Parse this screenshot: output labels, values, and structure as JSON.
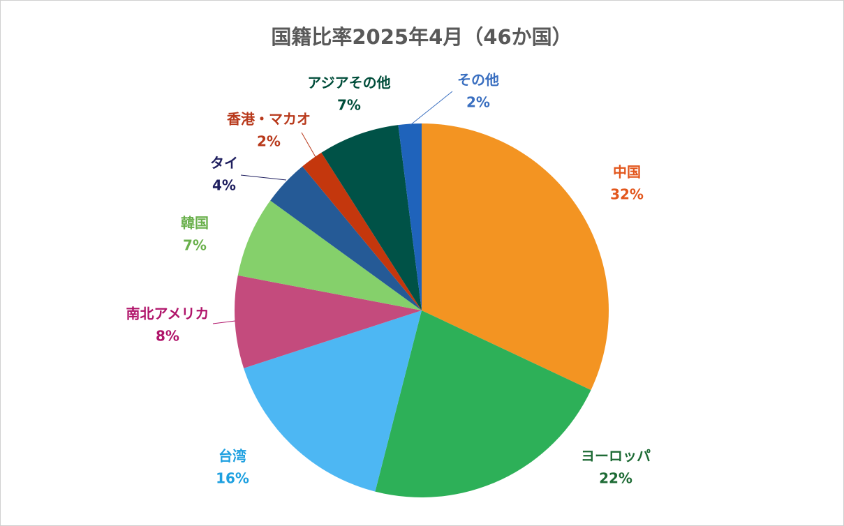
{
  "chart_data": {
    "type": "pie",
    "title": "国籍比率2025年4月（46か国）",
    "categories": [
      "中国",
      "ヨーロッパ",
      "台湾",
      "南北アメリカ",
      "韓国",
      "タイ",
      "香港・マカオ",
      "アジアその他",
      "その他"
    ],
    "values": [
      32,
      22,
      16,
      8,
      7,
      4,
      2,
      7,
      2
    ],
    "value_labels": [
      "32%",
      "22%",
      "16%",
      "8%",
      "7%",
      "4%",
      "2%",
      "7%",
      "2%"
    ],
    "colors": [
      "#f39422",
      "#2db058",
      "#4db7f3",
      "#c44b7d",
      "#85d06b",
      "#255a96",
      "#c4370d",
      "#005247",
      "#1f63bb"
    ],
    "label_colors": [
      "#e2561c",
      "#1e6b35",
      "#1ea0e0",
      "#b0146a",
      "#6ab04c",
      "#1f1f5f",
      "#b8391b",
      "#004d3a",
      "#3a6fc0"
    ]
  }
}
